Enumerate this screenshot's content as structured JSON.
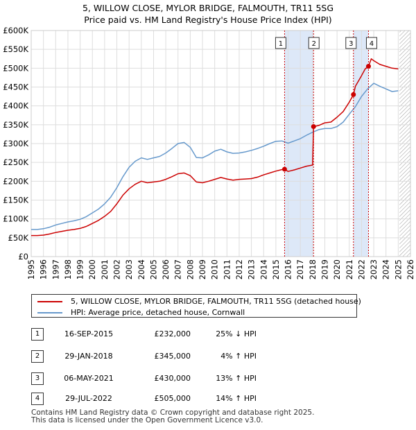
{
  "title": {
    "line1": "5, WILLOW CLOSE, MYLOR BRIDGE, FALMOUTH, TR11 5SG",
    "line2": "Price paid vs. HM Land Registry's House Price Index (HPI)"
  },
  "colors": {
    "price_line": "#cc0000",
    "hpi_line": "#6699cc",
    "shade": "#dde8f8",
    "marker_line": "#cc0000",
    "grid": "#dddddd",
    "hatch": "#999999"
  },
  "legend": {
    "price_label": "5, WILLOW CLOSE, MYLOR BRIDGE, FALMOUTH, TR11 5SG (detached house)",
    "hpi_label": "HPI: Average price, detached house, Cornwall"
  },
  "transactions": [
    {
      "num": "1",
      "date": "16-SEP-2015",
      "price": "£232,000",
      "hpi": "25% ↓ HPI"
    },
    {
      "num": "2",
      "date": "29-JAN-2018",
      "price": "£345,000",
      "hpi": "4% ↑ HPI"
    },
    {
      "num": "3",
      "date": "06-MAY-2021",
      "price": "£430,000",
      "hpi": "13% ↑ HPI"
    },
    {
      "num": "4",
      "date": "29-JUL-2022",
      "price": "£505,000",
      "hpi": "14% ↑ HPI"
    }
  ],
  "footer": {
    "line1": "Contains HM Land Registry data © Crown copyright and database right 2025.",
    "line2": "This data is licensed under the Open Government Licence v3.0."
  },
  "chart_data": {
    "type": "line",
    "title": "5, WILLOW CLOSE, MYLOR BRIDGE, FALMOUTH, TR11 5SG - Price paid vs. HM Land Registry's House Price Index (HPI)",
    "xlim": [
      1995,
      2026
    ],
    "ylim": [
      0,
      600000
    ],
    "x_ticks": [
      1995,
      1996,
      1997,
      1998,
      1999,
      2000,
      2001,
      2002,
      2003,
      2004,
      2005,
      2006,
      2007,
      2008,
      2009,
      2010,
      2011,
      2012,
      2013,
      2014,
      2015,
      2016,
      2017,
      2018,
      2019,
      2020,
      2021,
      2022,
      2023,
      2024,
      2025,
      2026
    ],
    "y_ticks": [
      {
        "value": 0,
        "label": "£0"
      },
      {
        "value": 50000,
        "label": "£50K"
      },
      {
        "value": 100000,
        "label": "£100K"
      },
      {
        "value": 150000,
        "label": "£150K"
      },
      {
        "value": 200000,
        "label": "£200K"
      },
      {
        "value": 250000,
        "label": "£250K"
      },
      {
        "value": 300000,
        "label": "£300K"
      },
      {
        "value": 350000,
        "label": "£350K"
      },
      {
        "value": 400000,
        "label": "£400K"
      },
      {
        "value": 450000,
        "label": "£450K"
      },
      {
        "value": 500000,
        "label": "£500K"
      },
      {
        "value": 550000,
        "label": "£550K"
      },
      {
        "value": 600000,
        "label": "£600K"
      }
    ],
    "shaded_ranges": [
      [
        2015.71,
        2018.08
      ],
      [
        2021.34,
        2022.57
      ]
    ],
    "future_start": 2025.1,
    "sale_markers": [
      {
        "label": "1",
        "x": 2015.71,
        "y": 232000
      },
      {
        "label": "2",
        "x": 2018.08,
        "y": 345000
      },
      {
        "label": "3",
        "x": 2021.34,
        "y": 430000
      },
      {
        "label": "4",
        "x": 2022.57,
        "y": 505000
      }
    ],
    "series": [
      {
        "name": "5, WILLOW CLOSE, MYLOR BRIDGE, FALMOUTH, TR11 5SG (detached house)",
        "x": [
          1995,
          1995.5,
          1996,
          1996.5,
          1997,
          1997.5,
          1998,
          1998.5,
          1999,
          1999.5,
          2000,
          2000.5,
          2001,
          2001.5,
          2002,
          2002.5,
          2003,
          2003.5,
          2004,
          2004.5,
          2005,
          2005.5,
          2006,
          2006.5,
          2007,
          2007.5,
          2008,
          2008.5,
          2009,
          2009.5,
          2010,
          2010.5,
          2011,
          2011.5,
          2012,
          2012.5,
          2013,
          2013.5,
          2014,
          2014.5,
          2015,
          2015.5,
          2015.71,
          2016,
          2016.5,
          2017,
          2017.5,
          2018.0,
          2018.08,
          2018.5,
          2019,
          2019.5,
          2020,
          2020.5,
          2021,
          2021.34,
          2021.5,
          2022,
          2022.3,
          2022.57,
          2022.8,
          2023,
          2023.5,
          2024,
          2024.5,
          2025
        ],
        "values": [
          56000,
          56000,
          57000,
          60000,
          64000,
          67000,
          70000,
          72000,
          75000,
          80000,
          88000,
          96000,
          107000,
          120000,
          140000,
          163000,
          180000,
          192000,
          200000,
          196000,
          198000,
          200000,
          205000,
          212000,
          220000,
          222000,
          215000,
          198000,
          196000,
          200000,
          205000,
          210000,
          206000,
          203000,
          205000,
          206000,
          207000,
          211000,
          217000,
          222000,
          227000,
          231000,
          232000,
          226000,
          230000,
          235000,
          240000,
          243000,
          345000,
          348000,
          355000,
          357000,
          370000,
          385000,
          410000,
          430000,
          452000,
          480000,
          498000,
          505000,
          525000,
          520000,
          510000,
          505000,
          500000,
          498000
        ]
      },
      {
        "name": "HPI: Average price, detached house, Cornwall",
        "x": [
          1995,
          1995.5,
          1996,
          1996.5,
          1997,
          1997.5,
          1998,
          1998.5,
          1999,
          1999.5,
          2000,
          2000.5,
          2001,
          2001.5,
          2002,
          2002.5,
          2003,
          2003.5,
          2004,
          2004.5,
          2005,
          2005.5,
          2006,
          2006.5,
          2007,
          2007.5,
          2008,
          2008.5,
          2009,
          2009.5,
          2010,
          2010.5,
          2011,
          2011.5,
          2012,
          2012.5,
          2013,
          2013.5,
          2014,
          2014.5,
          2015,
          2015.5,
          2016,
          2016.5,
          2017,
          2017.5,
          2018,
          2018.5,
          2019,
          2019.5,
          2020,
          2020.5,
          2021,
          2021.5,
          2022,
          2022.5,
          2023,
          2023.5,
          2024,
          2024.5,
          2025
        ],
        "values": [
          72000,
          72000,
          74000,
          78000,
          84000,
          88000,
          92000,
          95000,
          99000,
          106000,
          116000,
          126000,
          140000,
          158000,
          183000,
          212000,
          237000,
          253000,
          262000,
          258000,
          262000,
          266000,
          275000,
          287000,
          300000,
          303000,
          290000,
          263000,
          262000,
          270000,
          280000,
          285000,
          278000,
          274000,
          275000,
          278000,
          282000,
          287000,
          293000,
          300000,
          306000,
          307000,
          301000,
          307000,
          313000,
          322000,
          330000,
          337000,
          340000,
          340000,
          345000,
          357000,
          378000,
          398000,
          425000,
          445000,
          460000,
          452000,
          445000,
          438000,
          440000
        ]
      }
    ]
  }
}
